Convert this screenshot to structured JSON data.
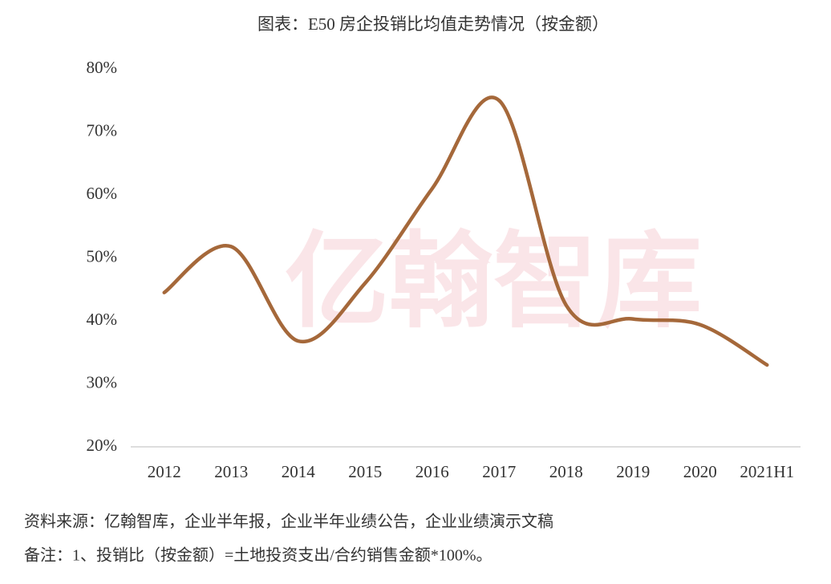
{
  "chart_data": {
    "type": "line",
    "title": "图表：E50 房企投销比均值走势情况（按金额）",
    "watermark": "亿翰智库",
    "categories": [
      "2012",
      "2013",
      "2014",
      "2015",
      "2016",
      "2017",
      "2018",
      "2019",
      "2020",
      "2021H1"
    ],
    "values": [
      44.5,
      51.8,
      36.8,
      46,
      61,
      75,
      42.5,
      40.3,
      39.4,
      33
    ],
    "color": "#a5683a",
    "ylim": [
      20,
      80
    ],
    "yticks": [
      {
        "value": 20,
        "label": "20%"
      },
      {
        "value": 30,
        "label": "30%"
      },
      {
        "value": 40,
        "label": "40%"
      },
      {
        "value": 50,
        "label": "50%"
      },
      {
        "value": 60,
        "label": "60%"
      },
      {
        "value": 70,
        "label": "70%"
      },
      {
        "value": 80,
        "label": "80%"
      }
    ],
    "grid": false,
    "notes": [
      "资料来源：亿翰智库，企业半年报，企业半年业绩公告，企业业绩演示文稿",
      "备注：1、投销比（按金额）=土地投资支出/合约销售金额*100%。"
    ]
  }
}
